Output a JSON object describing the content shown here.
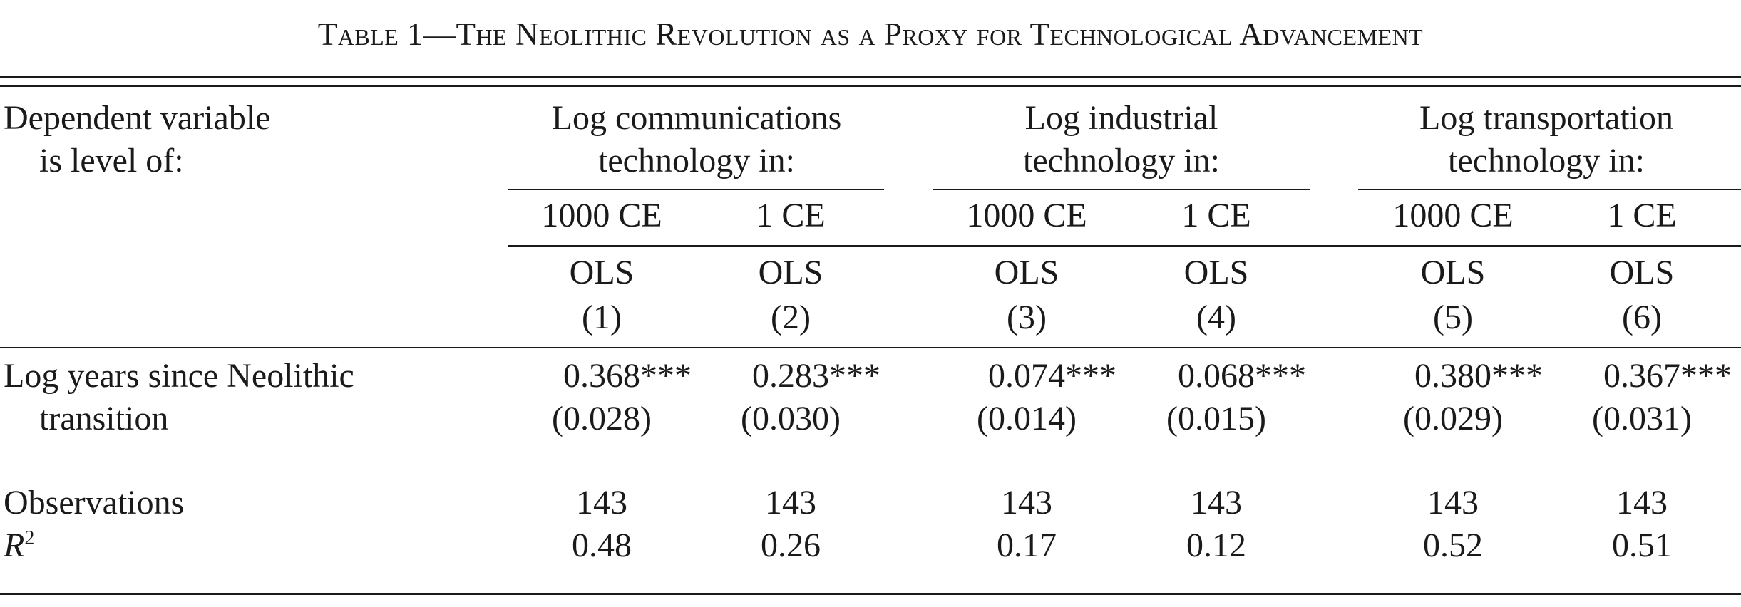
{
  "title": "Table 1—The Neolithic Revolution as a Proxy for Technological Advancement",
  "stub_header": {
    "line1": "Dependent variable",
    "line2": "is level of:"
  },
  "groups": [
    {
      "line1": "Log communications",
      "line2": "technology in:"
    },
    {
      "line1": "Log industrial",
      "line2": "technology in:"
    },
    {
      "line1": "Log transportation",
      "line2": "technology in:"
    }
  ],
  "periods": [
    "1000 CE",
    "1 CE",
    "1000 CE",
    "1 CE",
    "1000 CE",
    "1 CE"
  ],
  "estimators": [
    "OLS",
    "OLS",
    "OLS",
    "OLS",
    "OLS",
    "OLS"
  ],
  "column_numbers": [
    "(1)",
    "(2)",
    "(3)",
    "(4)",
    "(5)",
    "(6)"
  ],
  "rows": {
    "neolithic": {
      "label_line1": "Log years since Neolithic",
      "label_line2": "transition",
      "coef": [
        "0.368",
        "0.283",
        "0.074",
        "0.068",
        "0.380",
        "0.367"
      ],
      "stars": [
        "***",
        "***",
        "***",
        "***",
        "***",
        "***"
      ],
      "se": [
        "(0.028)",
        "(0.030)",
        "(0.014)",
        "(0.015)",
        "(0.029)",
        "(0.031)"
      ]
    },
    "observations": {
      "label": "Observations",
      "values": [
        "143",
        "143",
        "143",
        "143",
        "143",
        "143"
      ]
    },
    "r2": {
      "label_base": "R",
      "label_sup": "2",
      "values": [
        "0.48",
        "0.26",
        "0.17",
        "0.12",
        "0.52",
        "0.51"
      ]
    }
  }
}
